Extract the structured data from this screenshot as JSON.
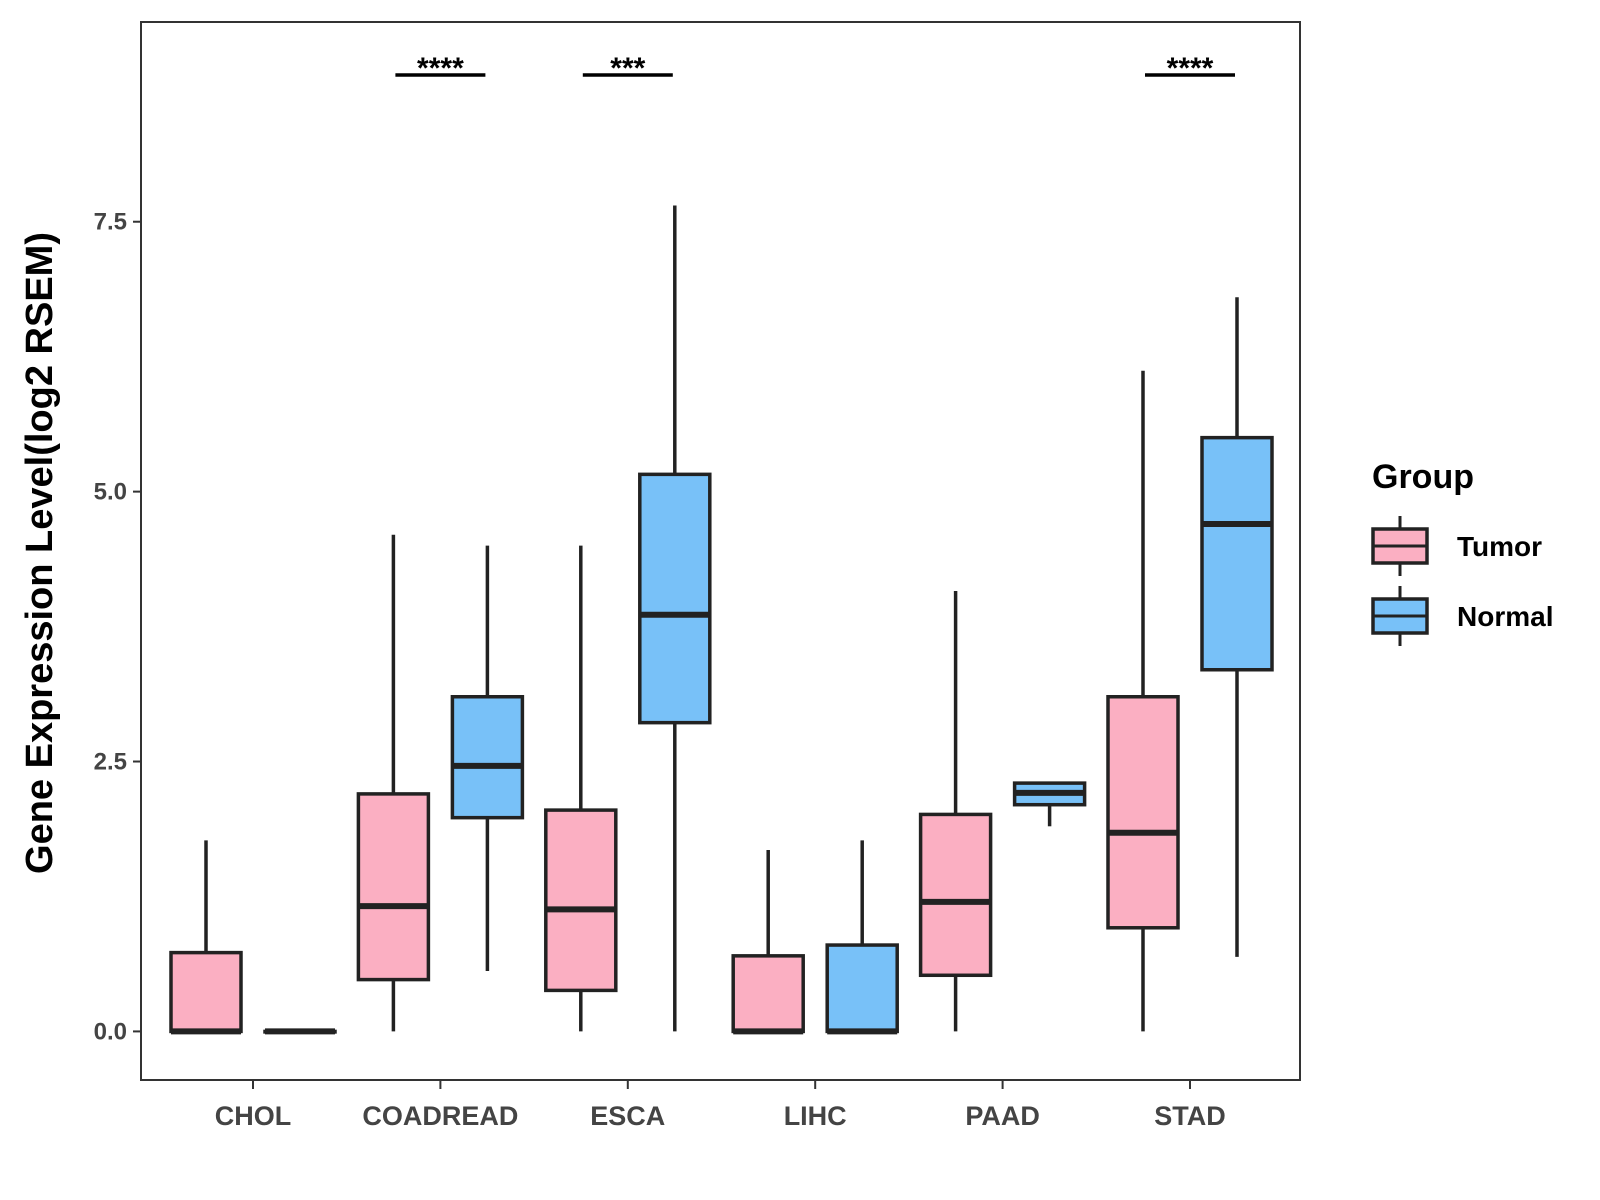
{
  "chart_data": {
    "type": "boxplot",
    "title": "",
    "xlabel": "",
    "ylabel": "Gene Expression Level(log2 RSEM)",
    "ylim": [
      -0.45,
      9.35
    ],
    "yticks": [
      0.0,
      2.5,
      5.0,
      7.5
    ],
    "ytick_labels": [
      "0.0",
      "2.5",
      "5.0",
      "7.5"
    ],
    "grid": false,
    "legend": {
      "title": "Group",
      "position": "right"
    },
    "categories": [
      "CHOL",
      "COADREAD",
      "ESCA",
      "LIHC",
      "PAAD",
      "STAD"
    ],
    "series": [
      {
        "name": "Tumor",
        "color": "#FBAFC2",
        "boxes": [
          {
            "whislo": 0.0,
            "q1": 0.0,
            "median": 0.0,
            "q3": 0.73,
            "whishi": 1.77
          },
          {
            "whislo": 0.0,
            "q1": 0.48,
            "median": 1.16,
            "q3": 2.2,
            "whishi": 4.6
          },
          {
            "whislo": 0.0,
            "q1": 0.38,
            "median": 1.13,
            "q3": 2.05,
            "whishi": 4.5
          },
          {
            "whislo": 0.0,
            "q1": 0.0,
            "median": 0.0,
            "q3": 0.7,
            "whishi": 1.68
          },
          {
            "whislo": 0.0,
            "q1": 0.52,
            "median": 1.2,
            "q3": 2.01,
            "whishi": 4.08
          },
          {
            "whislo": 0.0,
            "q1": 0.96,
            "median": 1.84,
            "q3": 3.1,
            "whishi": 6.12
          }
        ]
      },
      {
        "name": "Normal",
        "color": "#78C1F8",
        "boxes": [
          {
            "whislo": 0.0,
            "q1": 0.0,
            "median": 0.0,
            "q3": 0.0,
            "whishi": 0.0
          },
          {
            "whislo": 0.56,
            "q1": 1.98,
            "median": 2.46,
            "q3": 3.1,
            "whishi": 4.5
          },
          {
            "whislo": 0.0,
            "q1": 2.86,
            "median": 3.86,
            "q3": 5.16,
            "whishi": 7.65
          },
          {
            "whislo": 0.0,
            "q1": 0.0,
            "median": 0.0,
            "q3": 0.8,
            "whishi": 1.77
          },
          {
            "whislo": 1.9,
            "q1": 2.1,
            "median": 2.21,
            "q3": 2.3,
            "whishi": 2.3
          },
          {
            "whislo": 0.69,
            "q1": 3.35,
            "median": 4.7,
            "q3": 5.5,
            "whishi": 6.8
          }
        ]
      }
    ],
    "significance": [
      {
        "category": "COADREAD",
        "label": "****"
      },
      {
        "category": "ESCA",
        "label": "***"
      },
      {
        "category": "STAD",
        "label": "****"
      }
    ]
  }
}
